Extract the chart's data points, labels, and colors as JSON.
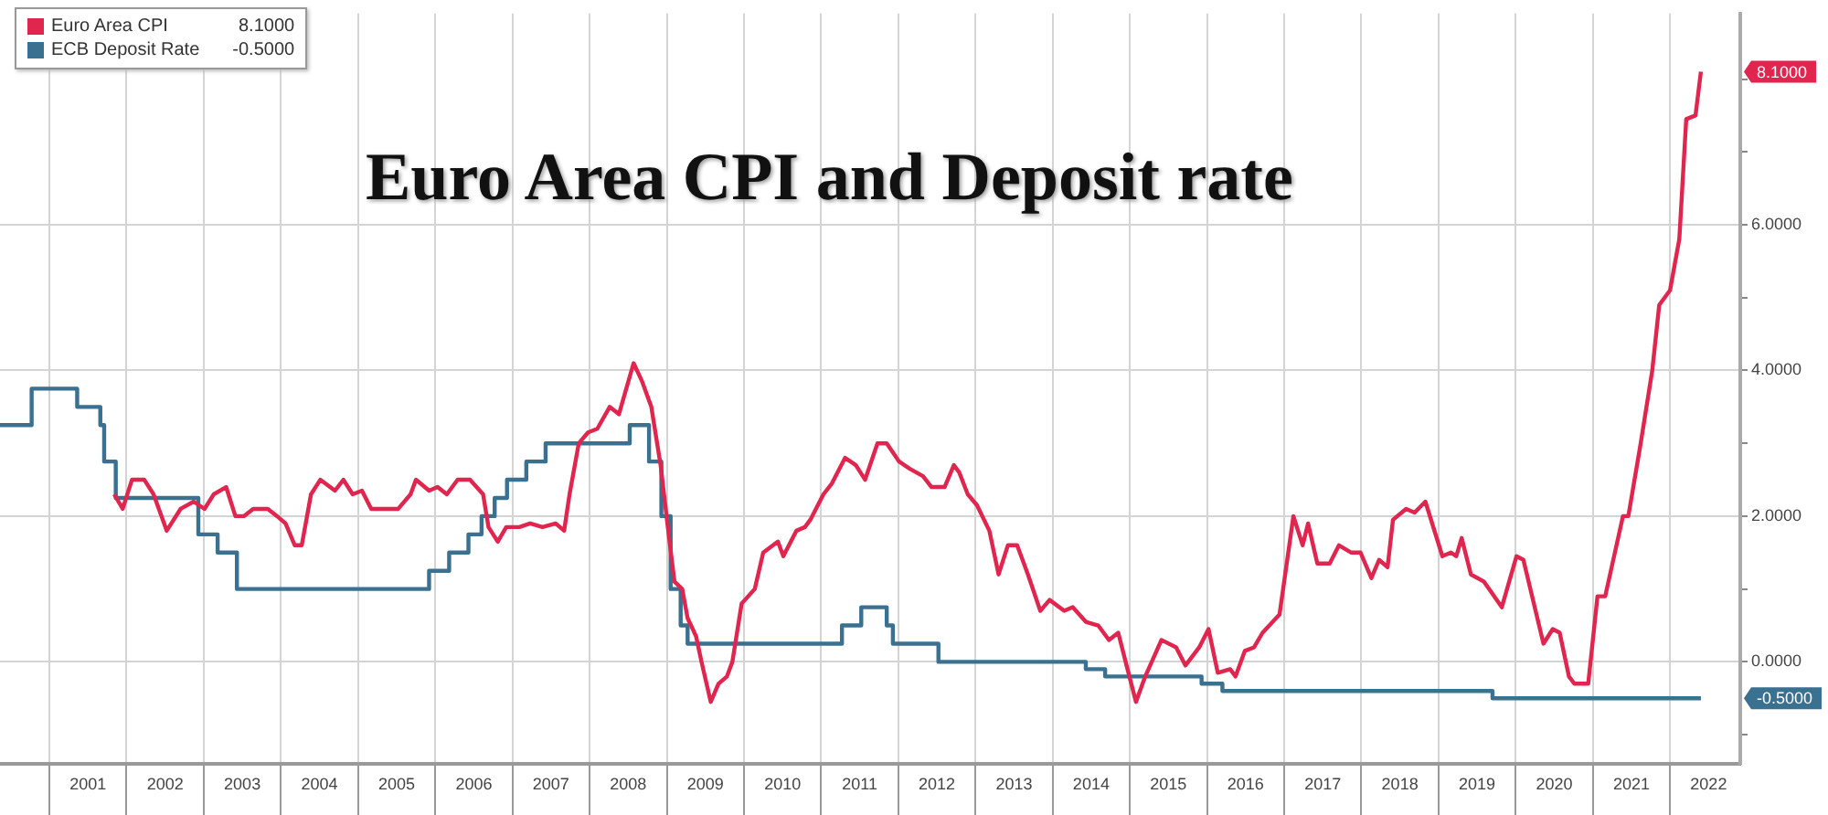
{
  "chart_data": {
    "type": "line",
    "title": "Euro Area CPI and Deposit rate",
    "xlim": [
      2000.36,
      2022.91
    ],
    "xticks": [
      {
        "value": 2001,
        "label": null
      },
      {
        "value": 2001.5,
        "label": "2001"
      },
      {
        "value": 2002,
        "label": null
      },
      {
        "value": 2002.5,
        "label": "2002"
      },
      {
        "value": 2003,
        "label": null
      },
      {
        "value": 2003.5,
        "label": "2003"
      },
      {
        "value": 2004,
        "label": null
      },
      {
        "value": 2004.5,
        "label": "2004"
      },
      {
        "value": 2005,
        "label": null
      },
      {
        "value": 2005.5,
        "label": "2005"
      },
      {
        "value": 2006,
        "label": null
      },
      {
        "value": 2006.5,
        "label": "2006"
      },
      {
        "value": 2007,
        "label": null
      },
      {
        "value": 2007.5,
        "label": "2007"
      },
      {
        "value": 2008,
        "label": null
      },
      {
        "value": 2008.5,
        "label": "2008"
      },
      {
        "value": 2009,
        "label": null
      },
      {
        "value": 2009.5,
        "label": "2009"
      },
      {
        "value": 2010,
        "label": null
      },
      {
        "value": 2010.5,
        "label": "2010"
      },
      {
        "value": 2011,
        "label": null
      },
      {
        "value": 2011.5,
        "label": "2011"
      },
      {
        "value": 2012,
        "label": null
      },
      {
        "value": 2012.5,
        "label": "2012"
      },
      {
        "value": 2013,
        "label": null
      },
      {
        "value": 2013.5,
        "label": "2013"
      },
      {
        "value": 2014,
        "label": null
      },
      {
        "value": 2014.5,
        "label": "2014"
      },
      {
        "value": 2015,
        "label": null
      },
      {
        "value": 2015.5,
        "label": "2015"
      },
      {
        "value": 2016,
        "label": null
      },
      {
        "value": 2016.5,
        "label": "2016"
      },
      {
        "value": 2017,
        "label": null
      },
      {
        "value": 2017.5,
        "label": "2017"
      },
      {
        "value": 2018,
        "label": null
      },
      {
        "value": 2018.5,
        "label": "2018"
      },
      {
        "value": 2019,
        "label": null
      },
      {
        "value": 2019.5,
        "label": "2019"
      },
      {
        "value": 2020,
        "label": null
      },
      {
        "value": 2020.5,
        "label": "2020"
      },
      {
        "value": 2021,
        "label": null
      },
      {
        "value": 2021.5,
        "label": "2021"
      },
      {
        "value": 2022,
        "label": null
      },
      {
        "value": 2022.5,
        "label": "2022"
      }
    ],
    "ylim": [
      -1.4,
      8.9
    ],
    "yticks": [
      {
        "value": -1,
        "label": null
      },
      {
        "value": 0,
        "label": "0.0000"
      },
      {
        "value": 1,
        "label": null
      },
      {
        "value": 2,
        "label": "2.0000"
      },
      {
        "value": 3,
        "label": null
      },
      {
        "value": 4,
        "label": "4.0000"
      },
      {
        "value": 5,
        "label": null
      },
      {
        "value": 6,
        "label": "6.0000"
      },
      {
        "value": 7,
        "label": null
      },
      {
        "value": 8,
        "label": null
      }
    ],
    "grid": true,
    "legend": "top left",
    "marker": "none",
    "series": [
      {
        "name": "Euro Area CPI",
        "color": "#e0254f",
        "x": [
          2001.84,
          2001.95,
          2002.07,
          2002.23,
          2002.35,
          2002.52,
          2002.7,
          2002.87,
          2003.01,
          2003.13,
          2003.29,
          2003.41,
          2003.52,
          2003.64,
          2003.83,
          2003.95,
          2004.06,
          2004.18,
          2004.27,
          2004.39,
          2004.51,
          2004.7,
          2004.81,
          2004.93,
          2005.05,
          2005.17,
          2005.35,
          2005.52,
          2005.68,
          2005.75,
          2005.92,
          2006.03,
          2006.15,
          2006.29,
          2006.45,
          2006.62,
          2006.69,
          2006.81,
          2006.92,
          2007.09,
          2007.23,
          2007.39,
          2007.56,
          2007.67,
          2007.74,
          2007.86,
          2007.98,
          2008.1,
          2008.26,
          2008.38,
          2008.57,
          2008.68,
          2008.8,
          2008.92,
          2009.03,
          2009.1,
          2009.2,
          2009.27,
          2009.38,
          2009.45,
          2009.57,
          2009.67,
          2009.78,
          2009.85,
          2009.97,
          2010.14,
          2010.25,
          2010.44,
          2010.51,
          2010.68,
          2010.79,
          2010.86,
          2011.03,
          2011.14,
          2011.31,
          2011.45,
          2011.57,
          2011.73,
          2011.85,
          2012.01,
          2012.15,
          2012.32,
          2012.43,
          2012.6,
          2012.72,
          2012.79,
          2012.9,
          2013.02,
          2013.18,
          2013.3,
          2013.42,
          2013.54,
          2013.68,
          2013.84,
          2013.96,
          2014.15,
          2014.26,
          2014.43,
          2014.59,
          2014.73,
          2014.85,
          2014.97,
          2015.08,
          2015.2,
          2015.41,
          2015.6,
          2015.72,
          2015.9,
          2016.02,
          2016.14,
          2016.3,
          2016.37,
          2016.49,
          2016.61,
          2016.72,
          2016.94,
          2017.12,
          2017.24,
          2017.31,
          2017.43,
          2017.59,
          2017.71,
          2017.87,
          2017.99,
          2018.13,
          2018.23,
          2018.34,
          2018.41,
          2018.58,
          2018.69,
          2018.83,
          2019.05,
          2019.16,
          2019.23,
          2019.3,
          2019.42,
          2019.59,
          2019.82,
          2020.01,
          2020.1,
          2020.36,
          2020.48,
          2020.57,
          2020.69,
          2020.76,
          2020.94,
          2021.06,
          2021.16,
          2021.39,
          2021.46,
          2021.62,
          2021.77,
          2021.86,
          2022.0,
          2022.12,
          2022.21,
          2022.33,
          2022.4
        ],
        "values": [
          2.3,
          2.1,
          2.5,
          2.5,
          2.3,
          1.8,
          2.1,
          2.2,
          2.1,
          2.3,
          2.4,
          2.0,
          2.0,
          2.1,
          2.1,
          2.0,
          1.9,
          1.6,
          1.6,
          2.3,
          2.5,
          2.35,
          2.5,
          2.3,
          2.35,
          2.1,
          2.1,
          2.1,
          2.3,
          2.5,
          2.35,
          2.4,
          2.3,
          2.5,
          2.5,
          2.3,
          1.85,
          1.65,
          1.85,
          1.85,
          1.9,
          1.85,
          1.9,
          1.8,
          2.3,
          3.0,
          3.15,
          3.2,
          3.5,
          3.4,
          4.1,
          3.85,
          3.5,
          2.7,
          1.7,
          1.1,
          1.0,
          0.6,
          0.35,
          0.0,
          -0.55,
          -0.3,
          -0.2,
          0.0,
          0.8,
          1.0,
          1.5,
          1.65,
          1.45,
          1.8,
          1.85,
          1.95,
          2.3,
          2.45,
          2.8,
          2.7,
          2.5,
          3.0,
          3.0,
          2.75,
          2.65,
          2.55,
          2.4,
          2.4,
          2.7,
          2.6,
          2.3,
          2.15,
          1.8,
          1.2,
          1.6,
          1.6,
          1.2,
          0.7,
          0.85,
          0.7,
          0.75,
          0.55,
          0.5,
          0.3,
          0.4,
          -0.1,
          -0.55,
          -0.2,
          0.3,
          0.2,
          -0.05,
          0.2,
          0.45,
          -0.15,
          -0.1,
          -0.2,
          0.15,
          0.2,
          0.4,
          0.65,
          2.0,
          1.6,
          1.9,
          1.35,
          1.35,
          1.6,
          1.5,
          1.5,
          1.15,
          1.4,
          1.3,
          1.95,
          2.1,
          2.05,
          2.2,
          1.45,
          1.5,
          1.45,
          1.7,
          1.2,
          1.1,
          0.75,
          1.45,
          1.4,
          0.25,
          0.45,
          0.4,
          -0.2,
          -0.3,
          -0.3,
          0.9,
          0.9,
          2.0,
          2.0,
          3.0,
          4.0,
          4.9,
          5.1,
          5.8,
          7.45,
          7.5,
          8.1
        ]
      },
      {
        "name": "ECB Deposit Rate",
        "color": "#3a7090",
        "type": "step",
        "x": [
          2000.36,
          2000.77,
          2001.36,
          2001.66,
          2001.71,
          2001.86,
          2002.93,
          2003.18,
          2003.43,
          2005.92,
          2006.18,
          2006.43,
          2006.6,
          2006.77,
          2006.93,
          2007.18,
          2007.43,
          2008.52,
          2008.77,
          2008.93,
          2009.05,
          2009.18,
          2009.27,
          2011.27,
          2011.52,
          2011.85,
          2011.93,
          2012.52,
          2014.43,
          2014.68,
          2015.93,
          2016.2,
          2019.7,
          2022.4
        ],
        "values": [
          3.25,
          3.75,
          3.5,
          3.25,
          2.75,
          2.25,
          1.75,
          1.5,
          1.0,
          1.25,
          1.5,
          1.75,
          2.0,
          2.25,
          2.5,
          2.75,
          3.0,
          3.25,
          2.75,
          2.0,
          1.0,
          0.5,
          0.25,
          0.5,
          0.75,
          0.5,
          0.25,
          0.0,
          -0.1,
          -0.2,
          -0.3,
          -0.4,
          -0.5,
          -0.5
        ]
      }
    ],
    "annotations": [
      "8.1000",
      "-0.5000"
    ]
  }
}
